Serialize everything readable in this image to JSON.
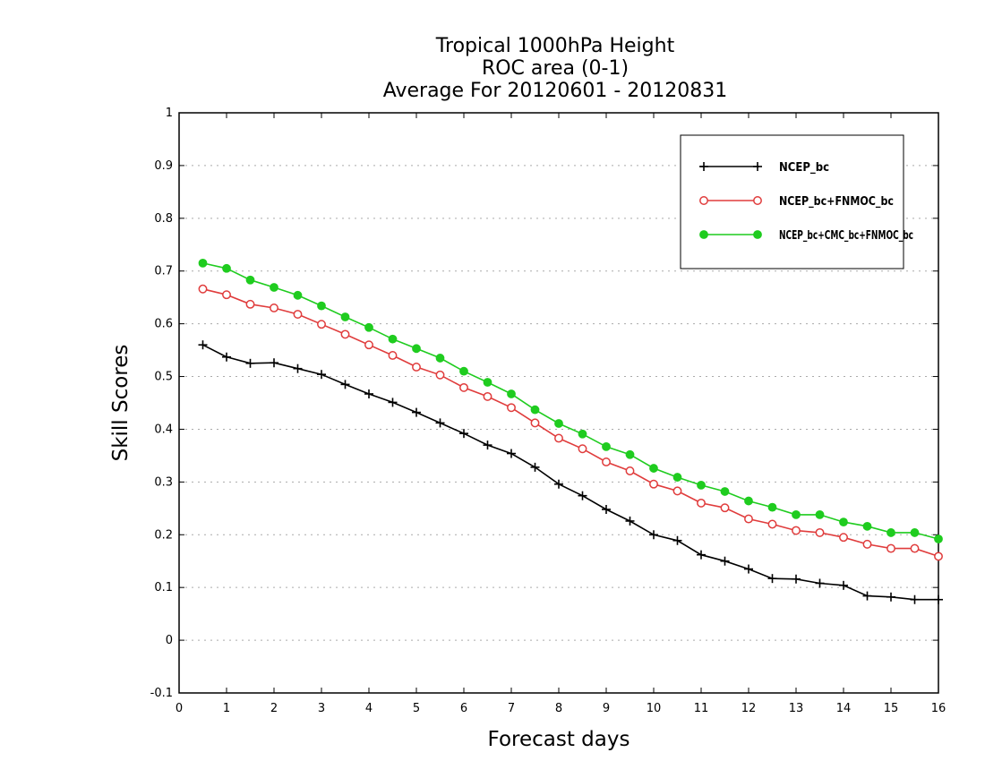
{
  "chart_data": {
    "type": "line",
    "title": [
      "Tropical 1000hPa Height",
      "ROC area (0-1)",
      "Average For 20120601 - 20120831"
    ],
    "xlabel": "Forecast days",
    "ylabel": "Skill Scores",
    "xlim": [
      0,
      16
    ],
    "ylim": [
      -0.1,
      1
    ],
    "x_ticks": [
      0,
      1,
      2,
      3,
      4,
      5,
      6,
      7,
      8,
      9,
      10,
      11,
      12,
      13,
      14,
      15,
      16
    ],
    "x_tick_labels": [
      "0",
      "1",
      "2",
      "3",
      "4",
      "5",
      "6",
      "7",
      "8",
      "9",
      "10",
      "11",
      "12",
      "13",
      "14",
      "15",
      "16"
    ],
    "y_ticks": [
      -0.1,
      0,
      0.1,
      0.2,
      0.3,
      0.4,
      0.5,
      0.6,
      0.7,
      0.8,
      0.9,
      1
    ],
    "y_tick_labels": [
      "-0.1",
      "0",
      "0.1",
      "0.2",
      "0.3",
      "0.4",
      "0.5",
      "0.6",
      "0.7",
      "0.8",
      "0.9",
      "1"
    ],
    "grid": "horizontal dotted",
    "legend_position": "top-right",
    "x": [
      0.5,
      1,
      1.5,
      2,
      2.5,
      3,
      3.5,
      4,
      4.5,
      5,
      5.5,
      6,
      6.5,
      7,
      7.5,
      8,
      8.5,
      9,
      9.5,
      10,
      10.5,
      11,
      11.5,
      12,
      12.5,
      13,
      13.5,
      14,
      14.5,
      15,
      15.5,
      16
    ],
    "series": [
      {
        "name": "NCEP_bc",
        "color": "#000000",
        "marker": "plus",
        "values": [
          0.56,
          0.537,
          0.525,
          0.526,
          0.515,
          0.504,
          0.485,
          0.467,
          0.451,
          0.432,
          0.412,
          0.392,
          0.37,
          0.354,
          0.328,
          0.296,
          0.274,
          0.248,
          0.226,
          0.2,
          0.189,
          0.162,
          0.15,
          0.135,
          0.117,
          0.116,
          0.108,
          0.104,
          0.084,
          0.082,
          0.077,
          0.077
        ]
      },
      {
        "name": "NCEP_bc+FNMOC_bc",
        "color": "#e03c3c",
        "marker": "open-circle",
        "values": [
          0.666,
          0.655,
          0.637,
          0.63,
          0.618,
          0.599,
          0.58,
          0.56,
          0.54,
          0.518,
          0.503,
          0.479,
          0.462,
          0.441,
          0.412,
          0.383,
          0.363,
          0.338,
          0.321,
          0.296,
          0.283,
          0.26,
          0.251,
          0.23,
          0.22,
          0.208,
          0.204,
          0.195,
          0.182,
          0.174,
          0.174,
          0.159
        ]
      },
      {
        "name": "NCEP_bc+CMC_bc+FNMOC_bc",
        "color": "#1fcc1f",
        "marker": "filled-circle",
        "values": [
          0.715,
          0.705,
          0.683,
          0.669,
          0.654,
          0.634,
          0.613,
          0.593,
          0.571,
          0.553,
          0.535,
          0.51,
          0.489,
          0.467,
          0.437,
          0.411,
          0.391,
          0.367,
          0.352,
          0.326,
          0.309,
          0.294,
          0.282,
          0.264,
          0.252,
          0.238,
          0.238,
          0.224,
          0.216,
          0.204,
          0.204,
          0.192
        ]
      }
    ]
  }
}
